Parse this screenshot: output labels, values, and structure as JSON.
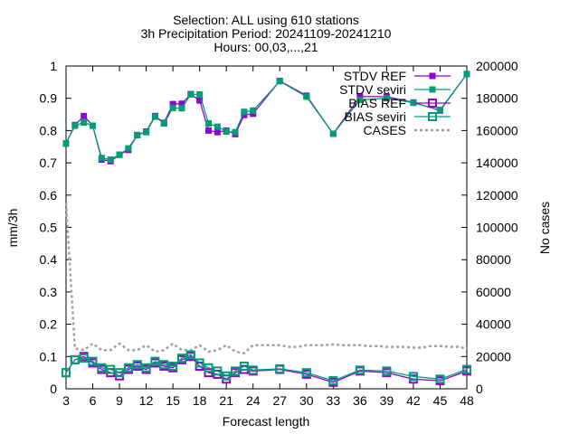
{
  "chart_data": {
    "type": "line",
    "title_lines": [
      "Selection: ALL using   610 stations",
      "3h Precipitation   Period: 20241109-20241210",
      "Hours: 00,03,...,21"
    ],
    "xlabel": "Forecast length",
    "ylabel": "mm/3h",
    "y2label": "No cases",
    "xlim": [
      3,
      48
    ],
    "ylim": [
      0,
      1
    ],
    "y2lim": [
      0,
      200000
    ],
    "xticks": [
      3,
      6,
      9,
      12,
      15,
      18,
      21,
      24,
      27,
      30,
      33,
      36,
      39,
      42,
      45,
      48
    ],
    "yticks": [
      0,
      0.1,
      0.2,
      0.3,
      0.4,
      0.5,
      0.6,
      0.7,
      0.8,
      0.9,
      1
    ],
    "y2ticks": [
      0,
      20000,
      40000,
      60000,
      80000,
      100000,
      120000,
      140000,
      160000,
      180000,
      200000
    ],
    "legend_position": "top-right",
    "grid": false,
    "series": [
      {
        "name": "STDV REF",
        "axis": "y1",
        "color": "#9400d3",
        "style": "solid-filled-square",
        "x": [
          3,
          4,
          5,
          6,
          7,
          8,
          9,
          10,
          11,
          12,
          13,
          14,
          15,
          16,
          17,
          18,
          19,
          20,
          21,
          22,
          23,
          24,
          27,
          30,
          33,
          36,
          39,
          42,
          45,
          48
        ],
        "values": [
          0.76,
          0.817,
          0.845,
          0.815,
          0.71,
          0.705,
          0.725,
          0.74,
          0.786,
          0.797,
          0.845,
          0.824,
          0.882,
          0.883,
          0.913,
          0.893,
          0.8,
          0.795,
          0.8,
          0.789,
          0.848,
          0.852,
          0.954,
          0.908,
          0.79,
          0.905,
          0.905,
          0.887,
          0.862,
          0.975
        ]
      },
      {
        "name": "STDV seviri",
        "axis": "y1",
        "color": "#009e73",
        "style": "solid-filled-square",
        "x": [
          3,
          4,
          5,
          6,
          7,
          8,
          9,
          10,
          11,
          12,
          13,
          14,
          15,
          16,
          17,
          18,
          19,
          20,
          21,
          22,
          23,
          24,
          27,
          30,
          33,
          36,
          39,
          42,
          45,
          48
        ],
        "values": [
          0.76,
          0.815,
          0.825,
          0.815,
          0.715,
          0.71,
          0.725,
          0.745,
          0.786,
          0.795,
          0.843,
          0.822,
          0.87,
          0.869,
          0.912,
          0.912,
          0.822,
          0.812,
          0.797,
          0.795,
          0.858,
          0.862,
          0.953,
          0.905,
          0.79,
          0.895,
          0.9,
          0.886,
          0.864,
          0.975
        ]
      },
      {
        "name": "BIAS REF",
        "axis": "y1",
        "color": "#9400d3",
        "style": "solid-open-square",
        "x": [
          3,
          4,
          5,
          6,
          7,
          8,
          9,
          10,
          11,
          12,
          13,
          14,
          15,
          16,
          17,
          18,
          19,
          20,
          21,
          22,
          23,
          24,
          27,
          30,
          33,
          36,
          39,
          42,
          45,
          48
        ],
        "values": [
          0.05,
          0.09,
          0.1,
          0.08,
          0.06,
          0.05,
          0.04,
          0.06,
          0.07,
          0.06,
          0.08,
          0.07,
          0.065,
          0.09,
          0.1,
          0.07,
          0.05,
          0.045,
          0.03,
          0.05,
          0.06,
          0.055,
          0.06,
          0.045,
          0.02,
          0.055,
          0.05,
          0.03,
          0.025,
          0.055
        ]
      },
      {
        "name": "BIAS seviri",
        "axis": "y1",
        "color": "#009e73",
        "style": "solid-open-square",
        "x": [
          3,
          4,
          5,
          6,
          7,
          8,
          9,
          10,
          11,
          12,
          13,
          14,
          15,
          16,
          17,
          18,
          19,
          20,
          21,
          22,
          23,
          24,
          27,
          30,
          33,
          36,
          39,
          42,
          45,
          48
        ],
        "values": [
          0.05,
          0.09,
          0.095,
          0.085,
          0.065,
          0.06,
          0.05,
          0.065,
          0.075,
          0.065,
          0.085,
          0.075,
          0.07,
          0.095,
          0.105,
          0.08,
          0.065,
          0.055,
          0.04,
          0.055,
          0.07,
          0.058,
          0.062,
          0.05,
          0.025,
          0.058,
          0.055,
          0.038,
          0.03,
          0.06
        ]
      },
      {
        "name": "CASES",
        "axis": "y2",
        "color": "#a0a0a0",
        "style": "dotted",
        "x": [
          3,
          4,
          5,
          6,
          7,
          8,
          9,
          10,
          11,
          12,
          13,
          14,
          15,
          16,
          17,
          18,
          19,
          20,
          21,
          22,
          23,
          24,
          25,
          26,
          27,
          28,
          29,
          30,
          31,
          32,
          33,
          34,
          35,
          36,
          37,
          38,
          39,
          40,
          41,
          42,
          43,
          44,
          45,
          46,
          47,
          48
        ],
        "values": [
          115000,
          25000,
          24000,
          28000,
          24000,
          24000,
          28000,
          24000,
          24000,
          27000,
          23000,
          24000,
          28000,
          24000,
          24000,
          27000,
          23000,
          24000,
          27000,
          23000,
          22000,
          27000,
          27000,
          27000,
          27000,
          26000,
          26000,
          27000,
          27000,
          27000,
          27500,
          27000,
          27000,
          27000,
          26500,
          26500,
          26000,
          26000,
          26000,
          25500,
          25500,
          26500,
          26500,
          26000,
          26000,
          25000
        ]
      }
    ]
  }
}
